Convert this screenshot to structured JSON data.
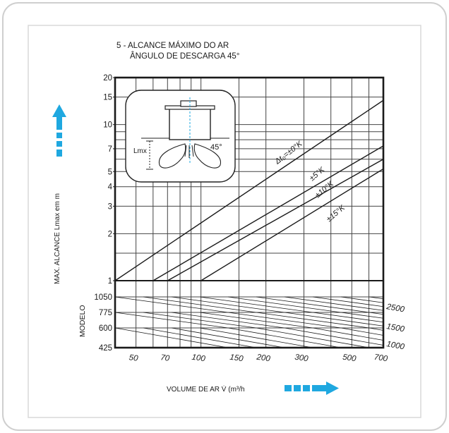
{
  "chart_data": {
    "type": "line",
    "title": "5 - ALCANCE MÁXIMO DO AR",
    "subtitle": "ÂNGULO DE DESCARGA 45°",
    "ylabel": "MAX. ALCANCE Lmax em m",
    "xlabel": "VOLUME DE AR V̇ (m³/h",
    "xscale": "log",
    "yscale": "log",
    "xlim": [
      40,
      700
    ],
    "ylim": [
      1,
      20
    ],
    "grid": true,
    "x_ticks": [
      "50",
      "70",
      "100",
      "150",
      "200",
      "300",
      "500",
      "700"
    ],
    "y_ticks": [
      "1",
      "2",
      "3",
      "4",
      "5",
      "7",
      "10",
      "15",
      "20"
    ],
    "series": [
      {
        "name": "Δt₀=±0°K",
        "x": [
          40,
          700
        ],
        "y": [
          1.0,
          14.3
        ]
      },
      {
        "name": "±5°K",
        "x": [
          60,
          700
        ],
        "y": [
          1.0,
          7.3
        ]
      },
      {
        "name": "±10°K",
        "x": [
          70,
          700
        ],
        "y": [
          1.0,
          6.0
        ]
      },
      {
        "name": "±15°K",
        "x": [
          100,
          700
        ],
        "y": [
          1.0,
          5.2
        ]
      }
    ],
    "model_panel": {
      "label": "MODELO",
      "left_ticks": [
        "1050",
        "775",
        "600",
        "425"
      ],
      "right_labels": [
        "2500",
        "1500",
        "1000"
      ]
    },
    "inset": {
      "angle_label": "45°",
      "length_label": "Lmx"
    },
    "colors": {
      "arrow": "#1fa8e0",
      "ink": "#1a1a1a",
      "grid": "#444444"
    }
  }
}
